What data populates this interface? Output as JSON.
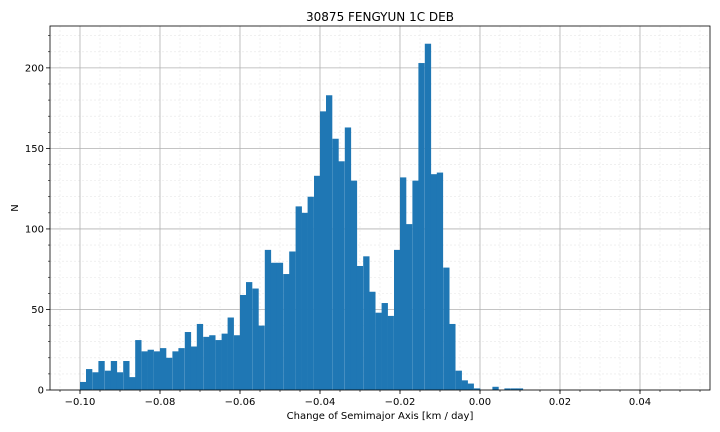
{
  "chart_data": {
    "type": "bar",
    "title": "30875 FENGYUN 1C DEB",
    "xlabel": "Change of Semimajor Axis [km / day]",
    "ylabel": "N",
    "xlim": [
      -0.1075,
      0.0575
    ],
    "ylim": [
      0,
      226
    ],
    "bin_width": 0.00154,
    "xticks": [
      -0.1,
      -0.08,
      -0.06,
      -0.04,
      -0.02,
      0.0,
      0.02,
      0.04
    ],
    "xtick_labels": [
      "−0.10",
      "−0.08",
      "−0.06",
      "−0.04",
      "−0.02",
      "0.00",
      "0.02",
      "0.04"
    ],
    "yticks": [
      0,
      50,
      100,
      150,
      200
    ],
    "ytick_labels": [
      "0",
      "50",
      "100",
      "150",
      "200"
    ],
    "grid": "major and minor",
    "bar_color": "#1f77b4",
    "bins_start": [
      -0.1,
      -0.0985,
      -0.0969,
      -0.0954,
      -0.0938,
      -0.0923,
      -0.0908,
      -0.0892,
      -0.0877,
      -0.0862,
      -0.0846,
      -0.0831,
      -0.0815,
      -0.08,
      -0.0785,
      -0.0769,
      -0.0754,
      -0.0738,
      -0.0723,
      -0.0708,
      -0.0692,
      -0.0677,
      -0.0661,
      -0.0646,
      -0.0631,
      -0.0615,
      -0.06,
      -0.0585,
      -0.0569,
      -0.0554,
      -0.0538,
      -0.0523,
      -0.0508,
      -0.0492,
      -0.0477,
      -0.0461,
      -0.0446,
      -0.0431,
      -0.0415,
      -0.04,
      -0.0385,
      -0.0369,
      -0.0354,
      -0.0338,
      -0.0323,
      -0.0308,
      -0.0292,
      -0.0277,
      -0.0261,
      -0.0246,
      -0.0231,
      -0.0215,
      -0.02,
      -0.0185,
      -0.0169,
      -0.0154,
      -0.0138,
      -0.0123,
      -0.0108,
      -0.0092,
      -0.0077,
      -0.0061,
      -0.0046,
      -0.0031,
      -0.0015,
      0.0,
      0.0015,
      0.0031,
      0.0046,
      0.0061,
      0.0077,
      0.0092
    ],
    "values": [
      5,
      13,
      11,
      18,
      12,
      18,
      11,
      18,
      8,
      31,
      24,
      25,
      24,
      26,
      20,
      24,
      26,
      36,
      27,
      41,
      33,
      34,
      31,
      35,
      45,
      34,
      59,
      67,
      63,
      40,
      87,
      79,
      79,
      72,
      86,
      114,
      110,
      120,
      133,
      173,
      183,
      156,
      142,
      163,
      130,
      77,
      83,
      61,
      48,
      54,
      46,
      87,
      132,
      103,
      130,
      203,
      215,
      134,
      135,
      76,
      41,
      12,
      6,
      4,
      1,
      0,
      0,
      2,
      0,
      1,
      1,
      1
    ]
  }
}
